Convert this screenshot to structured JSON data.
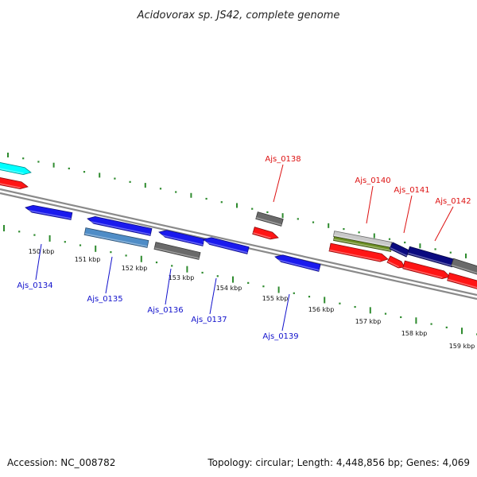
{
  "header": {
    "title": "Acidovorax sp. JS42, complete genome"
  },
  "footer": {
    "accession": "Accession: NC_008782",
    "stats": "Topology: circular; Length: 4,448,856 bp; Genes: 4,069"
  },
  "colors": {
    "backbone": "#8a8a8a",
    "tick": "#2e8b2e",
    "forward_label": "#dd1111",
    "reverse_label": "#1111cc",
    "red": "#ff1515",
    "blue": "#1a1aee",
    "steelblue": "#4f8dc7",
    "gray": "#6a6a6a",
    "cyan": "#00ffff",
    "navy": "#0a0a80",
    "olive": "#6b8e23",
    "lightgray": "#c8c8c8"
  },
  "scale": {
    "tick_labels": [
      "150 kbp",
      "151 kbp",
      "152 kbp",
      "153 kbp",
      "154 kbp",
      "155 kbp",
      "156 kbp",
      "157 kbp",
      "158 kbp",
      "159 kbp"
    ]
  },
  "gene_labels": {
    "forward": [
      "Ajs_0138",
      "Ajs_0140",
      "Ajs_0141",
      "Ajs_0142"
    ],
    "reverse": [
      "Ajs_0134",
      "Ajs_0135",
      "Ajs_0136",
      "Ajs_0137",
      "Ajs_0139"
    ]
  }
}
